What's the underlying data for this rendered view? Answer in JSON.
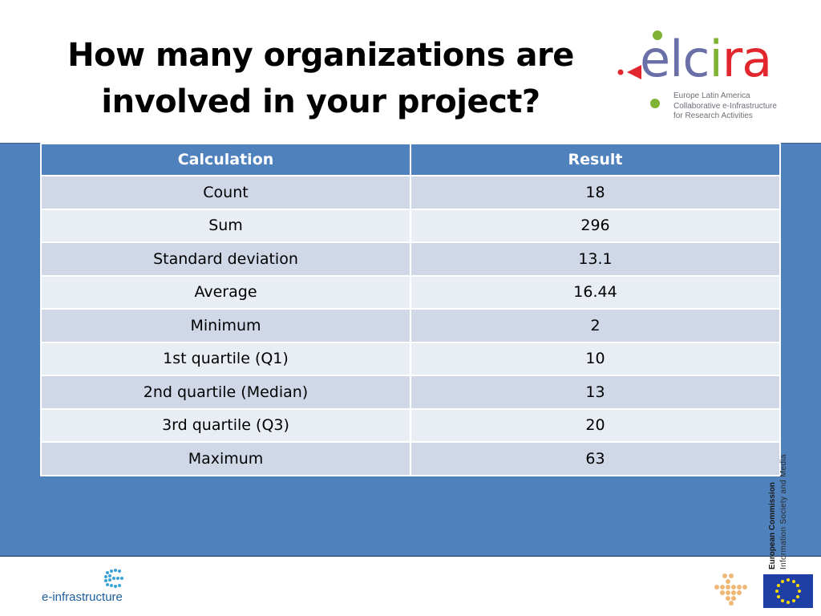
{
  "title": {
    "line1": "How many organizations are",
    "line2": "involved in your project?"
  },
  "logo": {
    "word_e": "e",
    "word_l": "l",
    "word_c": "c",
    "word_i": "i",
    "word_ra": "ra",
    "sub1": "Europe Latin America",
    "sub2": "Collaborative e-Infrastructure",
    "sub3": "for Research Activities",
    "colors": {
      "purple": "#6a6fa8",
      "green": "#7fb235",
      "red": "#e2262e"
    }
  },
  "table": {
    "headers": [
      "Calculation",
      "Result"
    ],
    "rows": [
      [
        "Count",
        "18"
      ],
      [
        "Sum",
        "296"
      ],
      [
        "Standard deviation",
        "13.1"
      ],
      [
        "Average",
        "16.44"
      ],
      [
        "Minimum",
        "2"
      ],
      [
        "1st quartile (Q1)",
        "10"
      ],
      [
        "2nd quartile (Median)",
        "13"
      ],
      [
        "3rd quartile (Q3)",
        "20"
      ],
      [
        "Maximum",
        "63"
      ]
    ]
  },
  "sidebar_text": {
    "line1": "European Commission",
    "line2": "Information Society and Media"
  },
  "footer": {
    "einfra_label": "e-infrastructure",
    "eu_flag_icon": "eu-flag-icon",
    "dots_icon": "dots-logo-icon"
  },
  "colors": {
    "panel_blue": "#4f81bd",
    "row_odd": "#d0d8e8",
    "row_even": "#e9edf4"
  }
}
